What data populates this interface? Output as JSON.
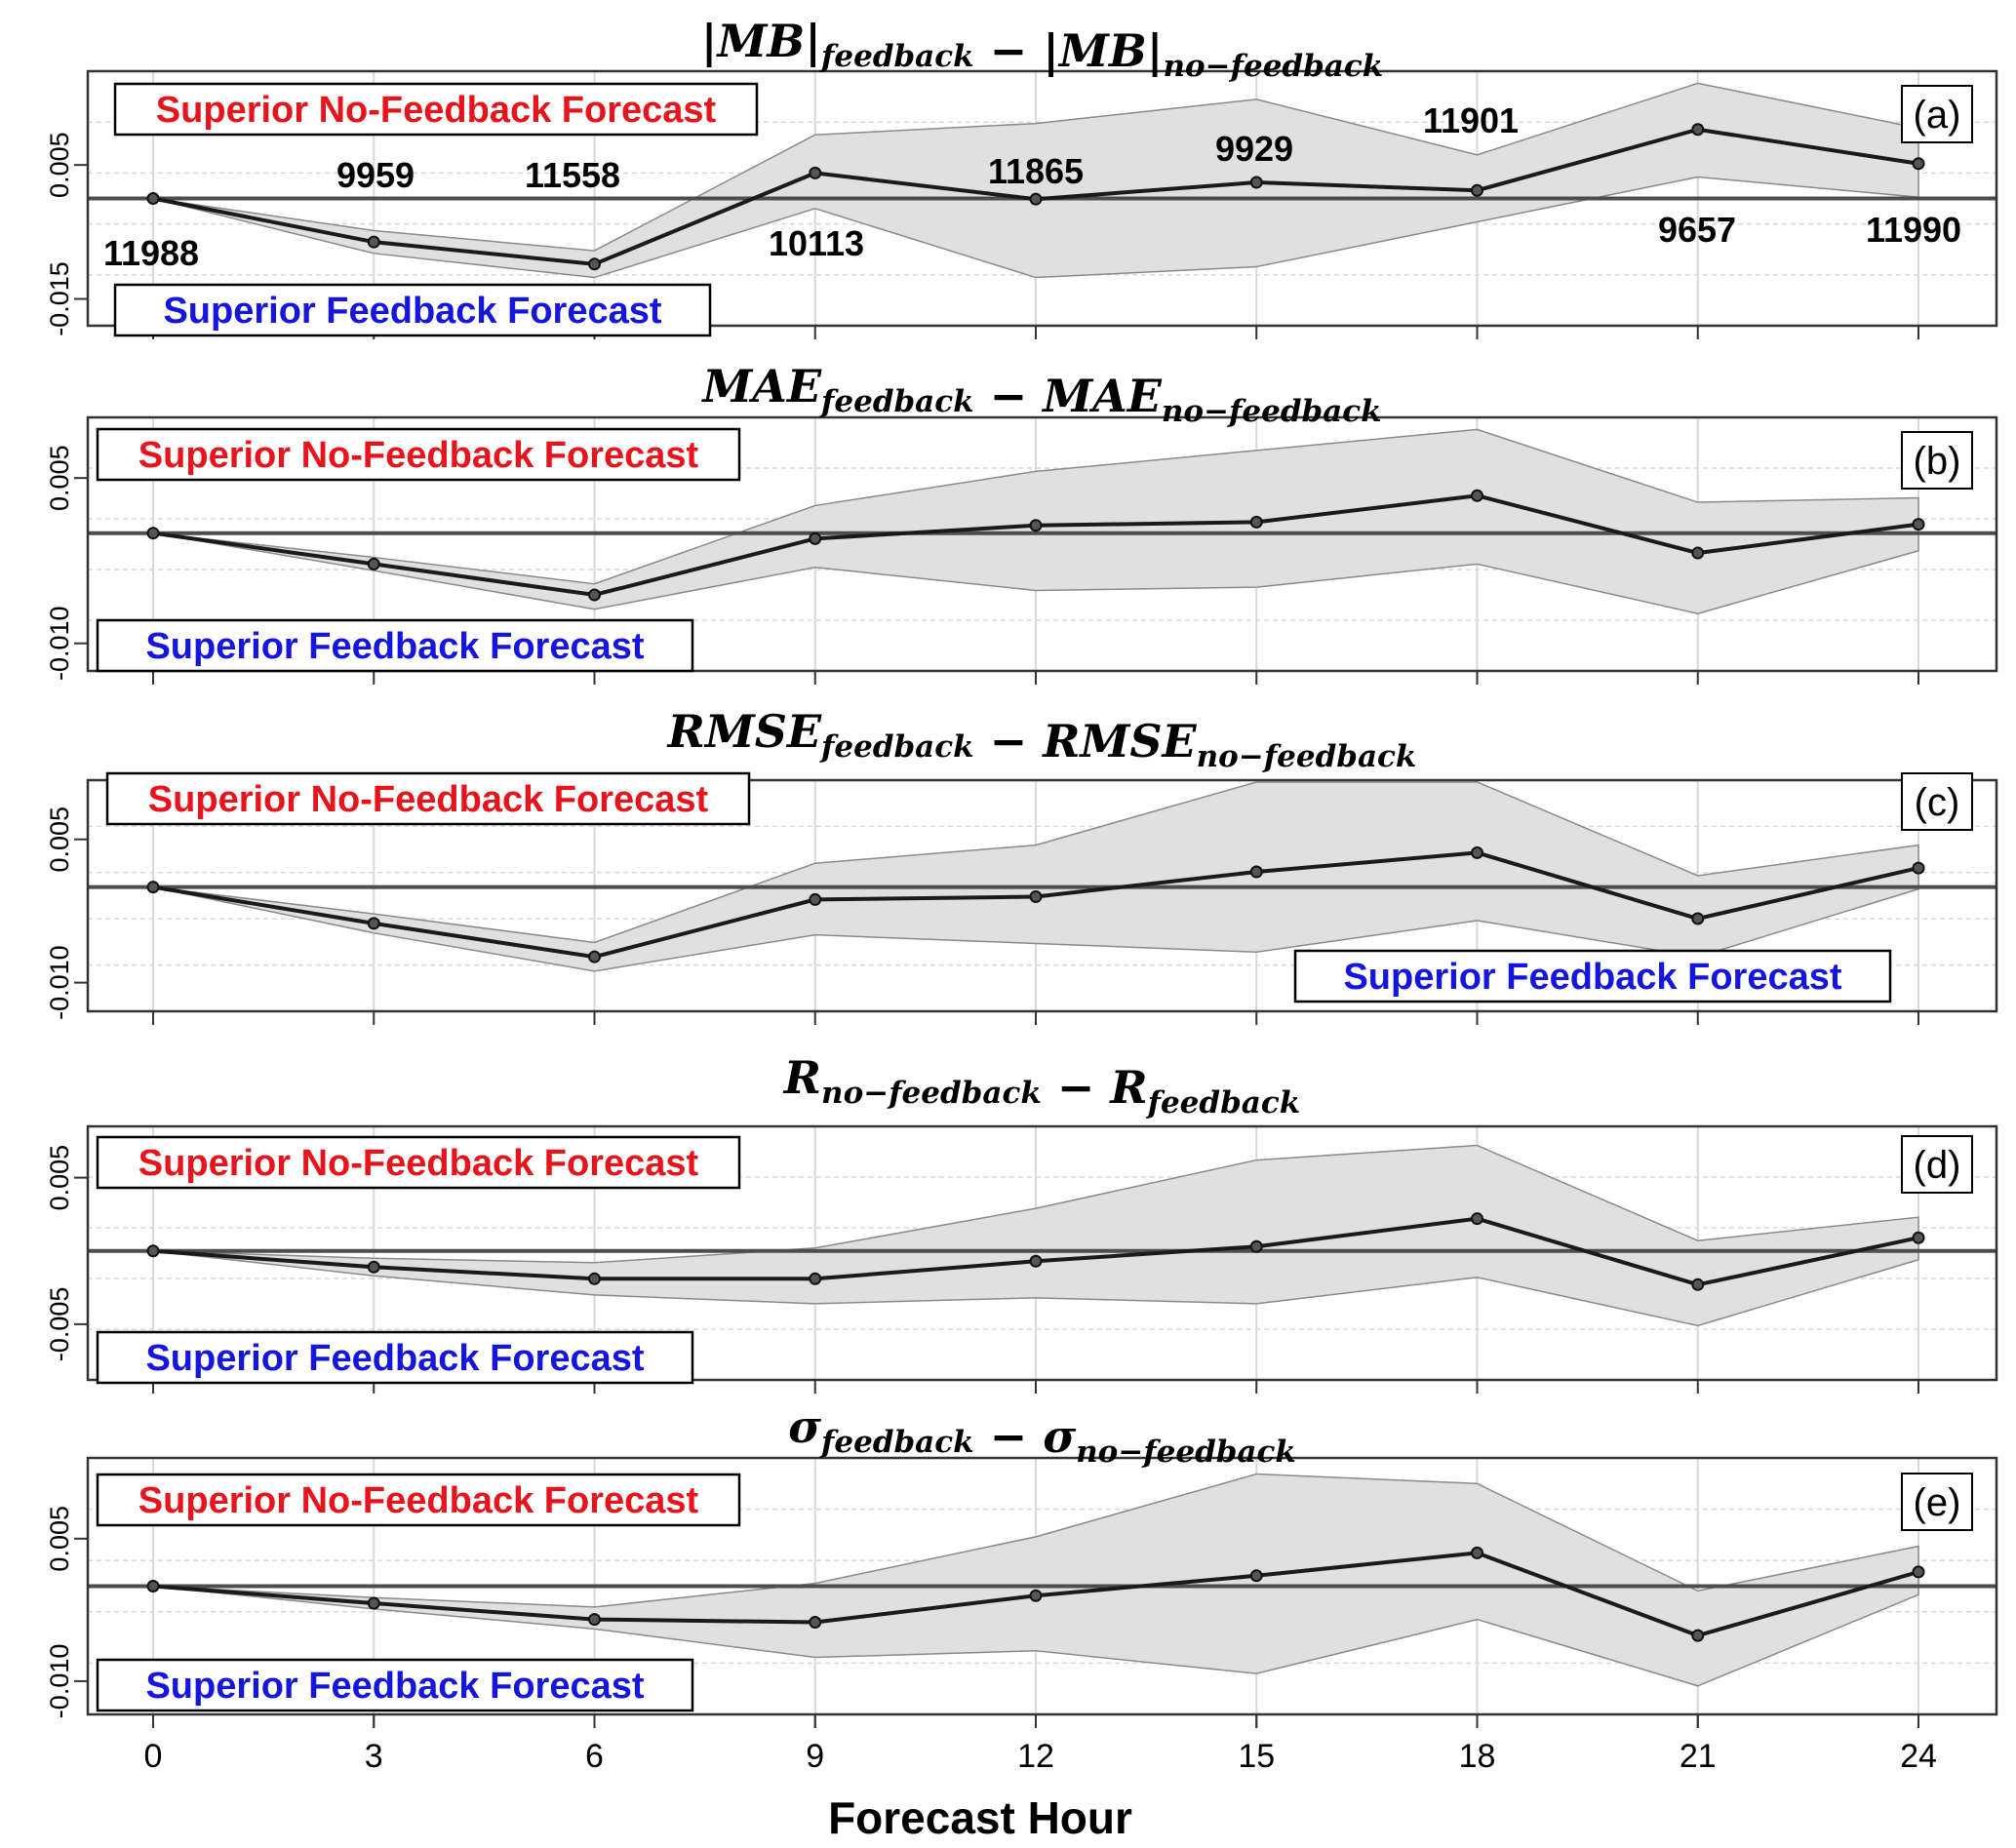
{
  "x_axis": {
    "label": "Forecast Hour",
    "ticks": [
      "0",
      "3",
      "6",
      "9",
      "12",
      "15",
      "18",
      "21",
      "24"
    ]
  },
  "labels": {
    "superior_no_feedback": "Superior No-Feedback Forecast",
    "superior_feedback": "Superior Feedback Forecast"
  },
  "colors": {
    "superior_no_feedback": "#e8141b",
    "superior_feedback": "#1515e0",
    "band": "#e0e0e0",
    "line": "#1a1a1a"
  },
  "chart_data": [
    {
      "panel": "(a)",
      "type": "line",
      "title": {
        "a": "|MB|",
        "a_sub": "feedback",
        "op": " − ",
        "b": "|MB|",
        "b_sub": "no−feedback"
      },
      "x": [
        0,
        3,
        6,
        9,
        12,
        15,
        18,
        21,
        24
      ],
      "series": [
        {
          "values": [
            0.0,
            -0.0065,
            -0.0098,
            0.0038,
            -0.0001,
            0.0024,
            0.0012,
            0.0103,
            0.0052
          ],
          "upper": [
            0.0,
            -0.0048,
            -0.0078,
            0.0095,
            0.0112,
            0.0148,
            0.0065,
            0.0172,
            0.0105
          ],
          "lower": [
            0.0,
            -0.0082,
            -0.0118,
            -0.0015,
            -0.0118,
            -0.0102,
            -0.0035,
            0.0032,
            0.0002
          ]
        }
      ],
      "counts": [
        "11988",
        "9959",
        "11558",
        "10113",
        "11865",
        "9929",
        "11901",
        "9657",
        "11990"
      ],
      "yticks": [
        "-0.015",
        "0.005"
      ],
      "ylim": [
        -0.019,
        0.019
      ]
    },
    {
      "panel": "(b)",
      "type": "line",
      "title": {
        "a": "MAE",
        "a_sub": "feedback",
        "op": " − ",
        "b": "MAE",
        "b_sub": "no−feedback"
      },
      "x": [
        0,
        3,
        6,
        9,
        12,
        15,
        18,
        21,
        24
      ],
      "series": [
        {
          "values": [
            0.0,
            -0.0028,
            -0.0056,
            -0.0005,
            0.0007,
            0.001,
            0.0034,
            -0.0018,
            0.0008
          ],
          "upper": [
            0.0,
            -0.0022,
            -0.0046,
            0.0025,
            0.0056,
            0.0075,
            0.0094,
            0.0028,
            0.0032
          ],
          "lower": [
            0.0,
            -0.0034,
            -0.0069,
            -0.0031,
            -0.0052,
            -0.0049,
            -0.0028,
            -0.0073,
            -0.0016
          ]
        }
      ],
      "yticks": [
        "-0.010",
        "0.005"
      ],
      "ylim": [
        -0.0125,
        0.0105
      ]
    },
    {
      "panel": "(c)",
      "type": "line",
      "title": {
        "a": "RMSE",
        "a_sub": "feedback",
        "op": " − ",
        "b": "RMSE",
        "b_sub": "no−feedback"
      },
      "x": [
        0,
        3,
        6,
        9,
        12,
        15,
        18,
        21,
        24
      ],
      "series": [
        {
          "values": [
            0.0,
            -0.0038,
            -0.0073,
            -0.0013,
            -0.001,
            0.0016,
            0.0036,
            -0.0033,
            0.002
          ],
          "upper": [
            0.0,
            -0.0028,
            -0.0058,
            0.0025,
            0.0044,
            0.011,
            0.011,
            0.0012,
            0.0044
          ],
          "lower": [
            0.0,
            -0.0048,
            -0.0088,
            -0.005,
            -0.0059,
            -0.0068,
            -0.0035,
            -0.0073,
            -0.0002
          ]
        }
      ],
      "yticks": [
        "-0.010",
        "0.005"
      ],
      "ylim": [
        -0.013,
        0.0112
      ]
    },
    {
      "panel": "(d)",
      "type": "line",
      "title": {
        "a": "R",
        "a_sub": "no−feedback",
        "op": " − ",
        "b": "R",
        "b_sub": "feedback"
      },
      "x": [
        0,
        3,
        6,
        9,
        12,
        15,
        18,
        21,
        24
      ],
      "series": [
        {
          "values": [
            0.0,
            -0.0011,
            -0.0019,
            -0.0019,
            -0.0007,
            0.0003,
            0.0022,
            -0.0023,
            0.0009
          ],
          "upper": [
            0.0,
            -0.0005,
            -0.0008,
            0.0002,
            0.0029,
            0.0062,
            0.0072,
            0.0007,
            0.0023
          ],
          "lower": [
            0.0,
            -0.0017,
            -0.003,
            -0.0036,
            -0.0032,
            -0.0036,
            -0.0018,
            -0.0051,
            -0.0006
          ]
        }
      ],
      "yticks": [
        "-0.005",
        "0.005"
      ],
      "ylim": [
        -0.0088,
        0.0085
      ]
    },
    {
      "panel": "(e)",
      "type": "line",
      "title": {
        "a": "σ",
        "a_sub": "feedback",
        "op": " − ",
        "b": "σ",
        "b_sub": "no−feedback"
      },
      "x": [
        0,
        3,
        6,
        9,
        12,
        15,
        18,
        21,
        24
      ],
      "series": [
        {
          "values": [
            0.0,
            -0.0018,
            -0.0035,
            -0.0038,
            -0.001,
            0.0011,
            0.0035,
            -0.0052,
            0.0015
          ],
          "upper": [
            0.0,
            -0.0012,
            -0.0022,
            0.0003,
            0.0052,
            0.0118,
            0.0108,
            -0.0005,
            0.0042
          ],
          "lower": [
            0.0,
            -0.0024,
            -0.0045,
            -0.0075,
            -0.0068,
            -0.0092,
            -0.0035,
            -0.0105,
            -0.0009
          ]
        }
      ],
      "yticks": [
        "-0.010",
        "0.005"
      ],
      "ylim": [
        -0.0135,
        0.0135
      ]
    }
  ]
}
